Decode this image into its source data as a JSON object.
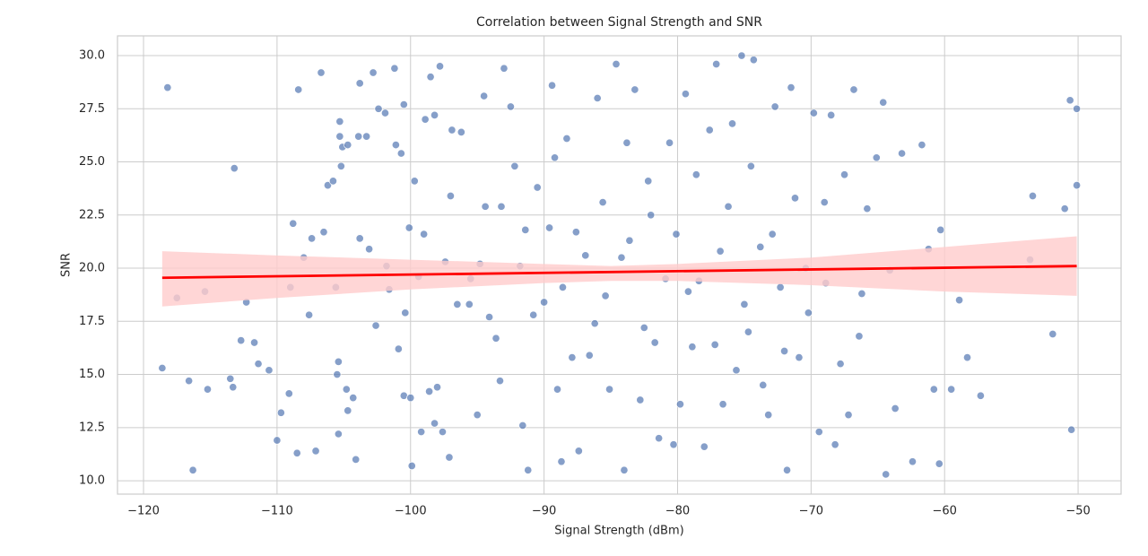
{
  "chart_data": {
    "type": "scatter",
    "title": "Correlation between Signal Strength and SNR",
    "x_label": "Signal Strength (dBm)",
    "y_label": "SNR",
    "color": "#4c72b0",
    "grid": true,
    "xlim": [
      -121.95,
      -46.78
    ],
    "ylim": [
      9.37,
      30.93
    ],
    "xticks": [
      {
        "value": -120,
        "label": "−120"
      },
      {
        "value": -110,
        "label": "−110"
      },
      {
        "value": -100,
        "label": "−100"
      },
      {
        "value": -90,
        "label": "−90"
      },
      {
        "value": -80,
        "label": "−80"
      },
      {
        "value": -70,
        "label": "−70"
      },
      {
        "value": -60,
        "label": "−60"
      },
      {
        "value": -50,
        "label": "−50"
      }
    ],
    "yticks": [
      {
        "value": 10,
        "label": "10.0"
      },
      12.5,
      {
        "value": 15,
        "label": "15.0"
      },
      17.5,
      {
        "value": 20,
        "label": "20.0"
      },
      22.5,
      {
        "value": 25,
        "label": "25.0"
      },
      27.5,
      {
        "value": 30,
        "label": "30.0"
      }
    ],
    "x": [
      -118.6,
      -118.2,
      -117.5,
      -116.3,
      -116.6,
      -115.4,
      -115.2,
      -113.2,
      -113.5,
      -113.3,
      -112.7,
      -112.3,
      -111.7,
      -111.4,
      -110.6,
      -110.0,
      -109.7,
      -109.1,
      -109.0,
      -108.8,
      -108.5,
      -108.4,
      -108.0,
      -107.6,
      -107.4,
      -107.1,
      -106.7,
      -106.5,
      -106.2,
      -105.8,
      -105.6,
      -105.5,
      -105.4,
      -105.4,
      -105.3,
      -105.3,
      -105.1,
      -105.2,
      -104.7,
      -104.8,
      -104.7,
      -104.3,
      -104.1,
      -103.9,
      -103.8,
      -103.8,
      -103.3,
      -103.1,
      -102.8,
      -102.6,
      -102.4,
      -101.9,
      -101.8,
      -101.6,
      -101.2,
      -101.1,
      -100.9,
      -100.7,
      -100.5,
      -100.4,
      -100.5,
      -100.1,
      -100.0,
      -99.9,
      -99.7,
      -99.4,
      -99.2,
      -99.0,
      -98.9,
      -98.6,
      -98.5,
      -98.2,
      -98.2,
      -98.0,
      -97.8,
      -97.6,
      -97.4,
      -97.1,
      -97.0,
      -96.5,
      -95.6,
      -95.0,
      -94.8,
      -94.5,
      -94.4,
      -93.6,
      -93.3,
      -93.0,
      -92.2,
      -91.8,
      -91.6,
      -91.2,
      -90.5,
      -90.0,
      -89.6,
      -89.4,
      -89.0,
      -88.7,
      -88.3,
      -87.9,
      -87.4,
      -86.9,
      -86.2,
      -85.6,
      -85.1,
      -84.6,
      -84.0,
      -83.6,
      -83.2,
      -82.5,
      -82.0,
      -81.4,
      -80.9,
      -80.6,
      -80.3,
      -79.8,
      -79.4,
      -78.9,
      -78.4,
      -78.0,
      -77.6,
      -77.1,
      -76.6,
      -76.2,
      -75.6,
      -75.2,
      -74.7,
      -74.3,
      -73.8,
      -73.2,
      -72.7,
      -72.3,
      -71.8,
      -71.5,
      -70.9,
      -70.4,
      -69.8,
      -69.4,
      -69.0,
      -68.5,
      -68.2,
      -67.8,
      -67.2,
      -66.8,
      -66.2,
      -65.8,
      -65.1,
      -64.6,
      -64.4,
      -64.1,
      -63.7,
      -63.2,
      -62.4,
      -61.7,
      -61.2,
      -60.8,
      -60.4,
      -60.3,
      -59.5,
      -58.9,
      -58.3,
      -57.3,
      -53.4,
      -53.6,
      -51.9,
      -51.0,
      -50.6,
      -50.5,
      -50.1,
      -50.1,
      -96.9,
      -96.2,
      -95.5,
      -94.1,
      -93.2,
      -92.5,
      -91.4,
      -90.8,
      -89.2,
      -88.6,
      -87.6,
      -86.6,
      -86.0,
      -85.4,
      -84.2,
      -83.8,
      -82.8,
      -82.2,
      -81.7,
      -80.1,
      -79.2,
      -78.6,
      -77.2,
      -76.8,
      -75.9,
      -75.0,
      -74.5,
      -73.6,
      -72.9,
      -72.0,
      -71.2,
      -70.2,
      -68.9,
      -67.5,
      -66.4
    ],
    "values": [
      15.3,
      28.5,
      18.6,
      10.5,
      14.7,
      18.9,
      14.3,
      24.7,
      14.8,
      14.4,
      16.6,
      18.4,
      16.5,
      15.5,
      15.2,
      11.9,
      13.2,
      14.1,
      19.1,
      22.1,
      11.3,
      28.4,
      20.5,
      17.8,
      21.4,
      11.4,
      29.2,
      21.7,
      23.9,
      24.1,
      19.1,
      15.0,
      15.6,
      12.2,
      26.9,
      26.2,
      25.7,
      24.8,
      25.8,
      14.3,
      13.3,
      13.9,
      11.0,
      26.2,
      21.4,
      28.7,
      26.2,
      20.9,
      29.2,
      17.3,
      27.5,
      27.3,
      20.1,
      19.0,
      29.4,
      25.8,
      16.2,
      25.4,
      14.0,
      17.9,
      27.7,
      21.9,
      13.9,
      10.7,
      24.1,
      19.6,
      12.3,
      21.6,
      27.0,
      14.2,
      29.0,
      27.2,
      12.7,
      14.4,
      29.5,
      12.3,
      20.3,
      11.1,
      23.4,
      18.3,
      18.3,
      13.1,
      20.2,
      28.1,
      22.9,
      16.7,
      14.7,
      29.4,
      24.8,
      20.1,
      12.6,
      10.5,
      23.8,
      18.4,
      21.9,
      28.6,
      14.3,
      10.9,
      26.1,
      15.8,
      11.4,
      20.6,
      17.4,
      23.1,
      14.3,
      29.6,
      10.5,
      21.3,
      28.4,
      17.2,
      22.5,
      12.0,
      19.5,
      25.9,
      11.7,
      13.6,
      28.2,
      16.3,
      19.4,
      11.6,
      26.5,
      29.6,
      13.6,
      22.9,
      15.2,
      30.0,
      17.0,
      29.8,
      21.0,
      13.1,
      27.6,
      19.1,
      10.5,
      28.5,
      15.8,
      20.0,
      27.3,
      12.3,
      23.1,
      27.2,
      11.7,
      15.5,
      13.1,
      28.4,
      18.8,
      22.8,
      25.2,
      27.8,
      10.3,
      19.9,
      13.4,
      25.4,
      10.9,
      25.8,
      20.9,
      14.3,
      10.8,
      21.8,
      14.3,
      18.5,
      15.8,
      14.0,
      23.4,
      20.4,
      16.9,
      22.8,
      27.9,
      12.4,
      27.5,
      23.9,
      26.5,
      26.4,
      19.5,
      17.7,
      22.9,
      27.6,
      21.8,
      17.8,
      25.2,
      19.1,
      21.7,
      15.9,
      28.0,
      18.7,
      20.5,
      25.9,
      13.8,
      24.1,
      16.5,
      21.6,
      18.9,
      24.4,
      16.4,
      20.8,
      26.8,
      18.3,
      24.8,
      14.5,
      21.6,
      16.1,
      23.3,
      17.9,
      19.3,
      24.4,
      16.8
    ],
    "regression": {
      "color": "#ff0000",
      "band_color": "#ffcccc",
      "x": [
        -118.6,
        -50.1
      ],
      "y": [
        19.55,
        20.1
      ],
      "ci_x": [
        -118.6,
        -110,
        -100,
        -90,
        -85,
        -80,
        -70,
        -60,
        -50.1
      ],
      "ci_lower": [
        18.2,
        18.6,
        19.0,
        19.3,
        19.4,
        19.4,
        19.2,
        18.9,
        18.7
      ],
      "ci_upper": [
        20.8,
        20.6,
        20.4,
        20.2,
        20.1,
        20.2,
        20.5,
        21.0,
        21.5
      ]
    }
  }
}
